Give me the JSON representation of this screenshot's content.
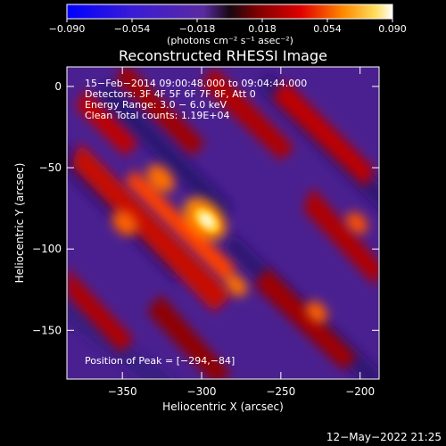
{
  "chart_data": {
    "type": "heatmap",
    "title": "Reconstructed RHESSI Image",
    "xlabel": "Heliocentric X (arcsec)",
    "ylabel": "Heliocentric Y (arcsec)",
    "xlim": [
      -385,
      -188
    ],
    "ylim": [
      -180,
      12
    ],
    "xticks": [
      -350,
      -300,
      -250,
      -200
    ],
    "xtick_labels": [
      "−350",
      "−300",
      "−250",
      "−200"
    ],
    "yticks": [
      0,
      -50,
      -100,
      -150
    ],
    "ytick_labels": [
      "0",
      "−50",
      "−100",
      "−150"
    ],
    "colorbar": {
      "min": -0.09,
      "max": 0.09,
      "ticks": [
        -0.09,
        -0.054,
        -0.018,
        0.018,
        0.054,
        0.09
      ],
      "tick_labels": [
        "−0.090",
        "−0.054",
        "−0.018",
        "0.018",
        "0.054",
        "0.090"
      ],
      "units_label": "(photons cm⁻² s⁻¹ asec⁻²)"
    },
    "annotations": [
      "15−Feb−2014 09:00:48.000 to 09:04:44.000",
      "Detectors: 3F 4F 5F 6F 7F 8F, Att 0",
      "Energy Range: 3.0 − 6.0 keV",
      "Clean     Total counts: 1.19E+04"
    ],
    "peak_label": "Position of Peak = [−294,−84]",
    "peak": [
      -294,
      -84
    ]
  },
  "footer": {
    "date_stamp": "12−May−2022 21:25"
  }
}
